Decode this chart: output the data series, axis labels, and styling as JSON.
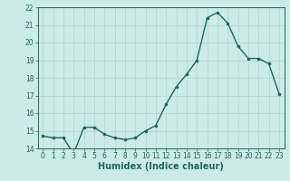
{
  "x": [
    0,
    1,
    2,
    3,
    4,
    5,
    6,
    7,
    8,
    9,
    10,
    11,
    12,
    13,
    14,
    15,
    16,
    17,
    18,
    19,
    20,
    21,
    22,
    23
  ],
  "y": [
    14.7,
    14.6,
    14.6,
    13.7,
    15.2,
    15.2,
    14.8,
    14.6,
    14.5,
    14.6,
    15.0,
    15.3,
    16.5,
    17.5,
    18.2,
    19.0,
    21.4,
    21.7,
    21.1,
    19.8,
    19.1,
    19.1,
    18.8,
    17.1
  ],
  "line_color": "#1a6b5a",
  "marker_color": "#1a6b5a",
  "bg_color": "#cceae7",
  "grid_color": "#b8d8d4",
  "xlabel": "Humidex (Indice chaleur)",
  "ylim": [
    14,
    22
  ],
  "xlim_min": -0.5,
  "xlim_max": 23.5,
  "yticks": [
    14,
    15,
    16,
    17,
    18,
    19,
    20,
    21,
    22
  ],
  "xticks": [
    0,
    1,
    2,
    3,
    4,
    5,
    6,
    7,
    8,
    9,
    10,
    11,
    12,
    13,
    14,
    15,
    16,
    17,
    18,
    19,
    20,
    21,
    22,
    23
  ],
  "tick_fontsize": 5.5,
  "xlabel_fontsize": 7,
  "line_width": 1.0,
  "marker_size": 2.2
}
